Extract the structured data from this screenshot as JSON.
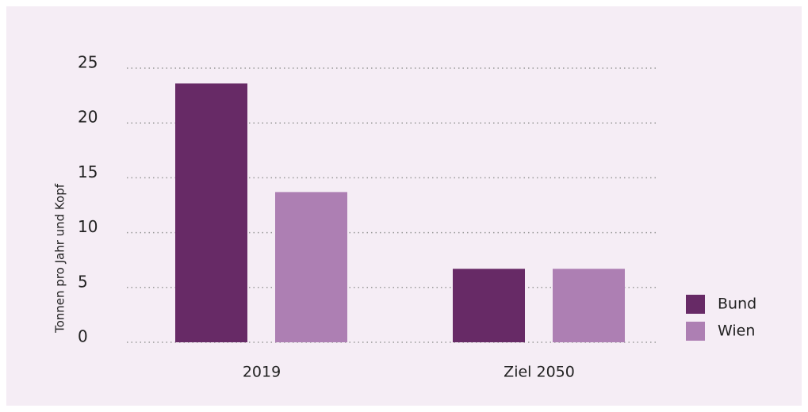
{
  "chart_data": {
    "type": "bar",
    "categories": [
      "2019",
      "Ziel 2050"
    ],
    "series": [
      {
        "name": "Bund",
        "color": "#672a66",
        "values": [
          23.6,
          6.7
        ]
      },
      {
        "name": "Wien",
        "color": "#ad7fb3",
        "values": [
          13.7,
          6.7
        ]
      }
    ],
    "ylabel": "Tonnen pro Jahr und Kopf",
    "ylim": [
      0,
      25
    ],
    "yticks": [
      0,
      5,
      10,
      15,
      20,
      25
    ],
    "grid": true,
    "legend": "bottom-right"
  }
}
